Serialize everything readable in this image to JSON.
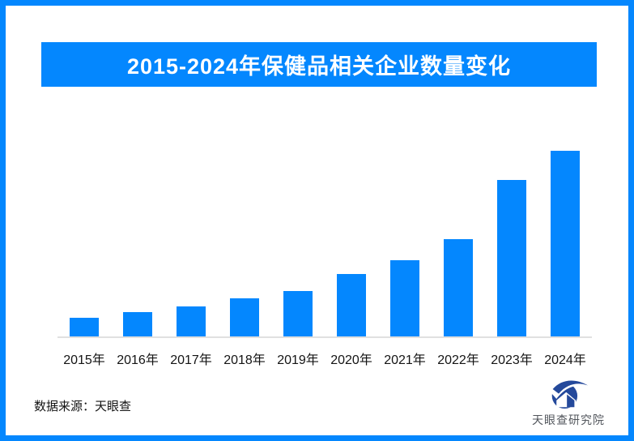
{
  "title_banner": {
    "text": "2015-2024年保健品相关企业数量变化"
  },
  "chart_data": {
    "type": "bar",
    "title": "2015-2024年保健品相关企业数量变化",
    "xlabel": "",
    "ylabel": "",
    "categories": [
      "2015年",
      "2016年",
      "2017年",
      "2018年",
      "2019年",
      "2020年",
      "2021年",
      "2022年",
      "2023年",
      "2024年"
    ],
    "values": [
      25,
      32,
      39,
      49,
      58,
      79,
      96,
      122,
      195,
      231
    ],
    "values_note": "no numeric y-axis or data labels shown; values are relative bar heights (px) read from the image",
    "bar_color": "#0487fe",
    "axis_line_color": "#e0e0e0",
    "grid": false,
    "legend": false,
    "y_axis_shown": false
  },
  "footer": {
    "source_label": "数据来源：天眼查",
    "logo": {
      "text": "天眼查研究院",
      "icon": "tianyancha-eye-logo",
      "glyph_color": "#24499b",
      "text_color": "#52565c"
    }
  },
  "colors": {
    "accent_blue": "#0487fe",
    "background": "#ffffff",
    "border": "#0487fe",
    "label_text": "#141414"
  }
}
